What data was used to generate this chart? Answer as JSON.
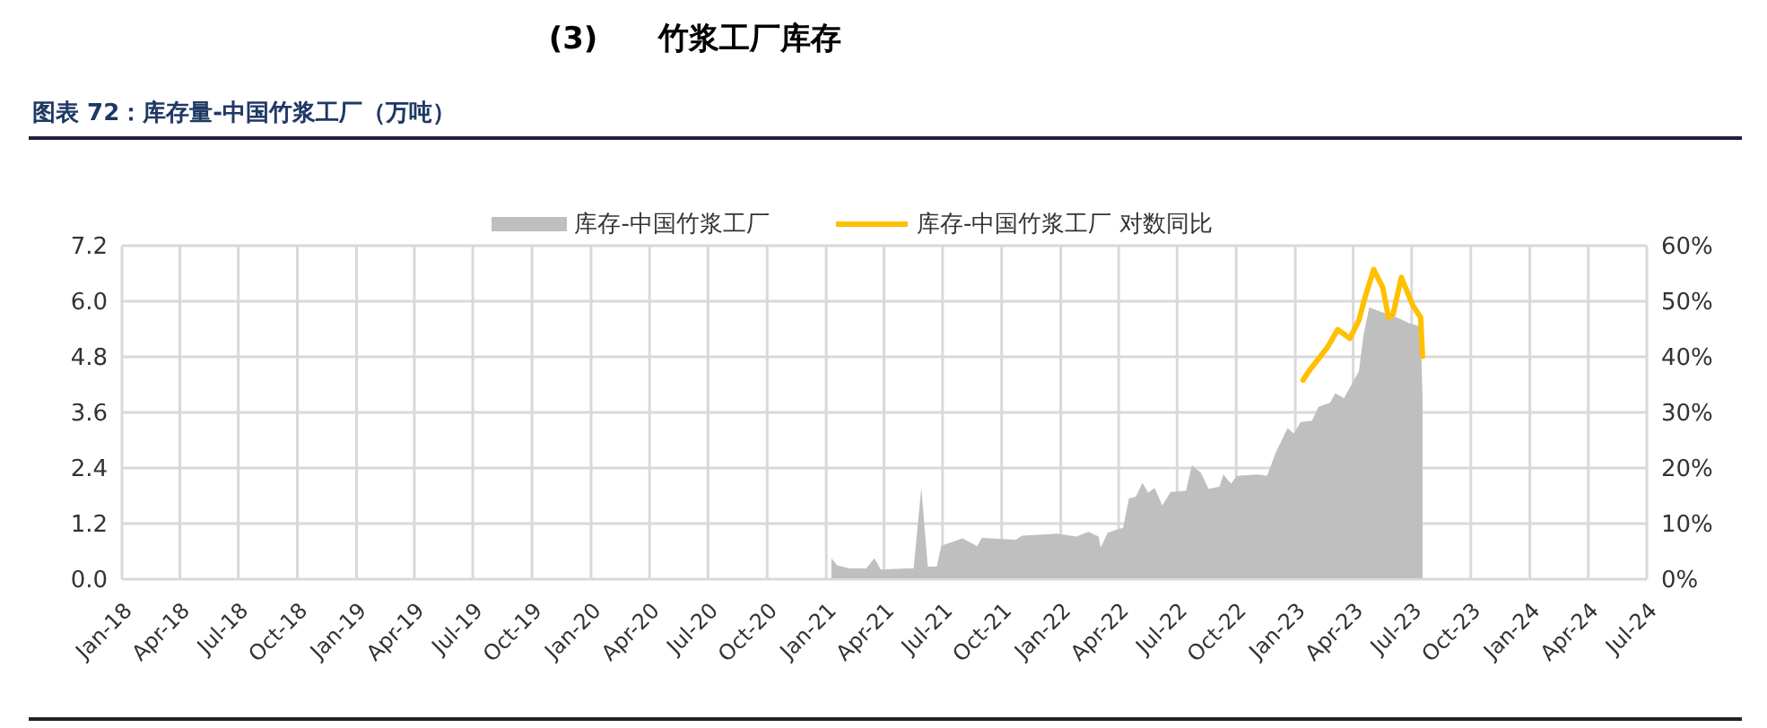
{
  "chart_data": {
    "type": "area",
    "title": "(3)　　竹浆工厂库存",
    "subtitle": "图表 72：库存量-中国竹浆工厂（万吨）",
    "series": [
      {
        "name": "库存-中国竹浆工厂",
        "color": "#bfbfbf",
        "x": [
          "2021-01-09",
          "2021-01-18",
          "2021-02-06",
          "2021-03-04",
          "2021-03-17",
          "2021-03-27",
          "2021-05-08",
          "2021-05-17",
          "2021-05-29",
          "2021-06-08",
          "2021-06-22",
          "2021-06-29",
          "2021-08-01",
          "2021-08-24",
          "2021-08-31",
          "2021-10-23",
          "2021-11-02",
          "2021-12-27",
          "2022-01-25",
          "2022-02-13",
          "2022-03-01",
          "2022-03-04",
          "2022-03-15",
          "2022-03-29",
          "2022-04-08",
          "2022-04-17",
          "2022-04-28",
          "2022-05-08",
          "2022-05-17",
          "2022-05-27",
          "2022-06-08",
          "2022-06-21",
          "2022-07-15",
          "2022-07-24",
          "2022-08-07",
          "2022-08-19",
          "2022-09-05",
          "2022-09-11",
          "2022-09-23",
          "2022-10-02",
          "2022-11-04",
          "2022-11-18",
          "2022-12-02",
          "2022-12-20",
          "2022-12-30",
          "2023-01-09",
          "2023-01-27",
          "2023-02-06",
          "2023-02-24",
          "2023-03-04",
          "2023-03-18",
          "2023-04-01",
          "2023-04-10",
          "2023-04-17",
          "2023-04-26",
          "2023-05-12",
          "2023-05-26",
          "2023-06-15",
          "2023-06-28",
          "2023-07-08",
          "2023-07-15",
          "2023-07-18"
        ],
        "values": [
          0.45,
          0.3,
          0.23,
          0.23,
          0.45,
          0.21,
          0.23,
          0.23,
          1.97,
          0.27,
          0.27,
          0.72,
          0.88,
          0.71,
          0.89,
          0.85,
          0.94,
          0.98,
          0.92,
          1.02,
          0.92,
          0.68,
          1.0,
          1.07,
          1.11,
          1.74,
          1.78,
          2.08,
          1.87,
          1.97,
          1.59,
          1.88,
          1.91,
          2.46,
          2.3,
          1.95,
          2.0,
          2.26,
          2.06,
          2.23,
          2.26,
          2.23,
          2.75,
          3.26,
          3.14,
          3.39,
          3.42,
          3.72,
          3.81,
          4.01,
          3.91,
          4.27,
          4.49,
          5.26,
          5.87,
          5.78,
          5.72,
          5.61,
          5.52,
          5.48,
          5.45,
          3.91
        ]
      },
      {
        "name": "库存-中国竹浆工厂 对数同比",
        "type": "line",
        "axis": "y2",
        "color": "#ffc000",
        "x": [
          "2023-01-13",
          "2023-01-22",
          "2023-02-20",
          "2023-03-08",
          "2023-03-27",
          "2023-04-10",
          "2023-04-20",
          "2023-05-03",
          "2023-05-17",
          "2023-05-26",
          "2023-06-02",
          "2023-06-15",
          "2023-07-03",
          "2023-07-15",
          "2023-07-18"
        ],
        "values": [
          35.8,
          37.4,
          41.7,
          44.9,
          43.3,
          46.6,
          50.9,
          55.7,
          52.5,
          47.1,
          47.6,
          54.3,
          49.2,
          47.1,
          40.1
        ]
      }
    ],
    "xlim": [
      "2018-01",
      "2024-07"
    ],
    "xticks": [
      {
        "value": "2018-01",
        "label": "Jan-18"
      },
      {
        "value": "2018-04",
        "label": "Apr-18"
      },
      {
        "value": "2018-07",
        "label": "Jul-18"
      },
      {
        "value": "2018-10",
        "label": "Oct-18"
      },
      {
        "value": "2019-01",
        "label": "Jan-19"
      },
      {
        "value": "2019-04",
        "label": "Apr-19"
      },
      {
        "value": "2019-07",
        "label": "Jul-19"
      },
      {
        "value": "2019-10",
        "label": "Oct-19"
      },
      {
        "value": "2020-01",
        "label": "Jan-20"
      },
      {
        "value": "2020-04",
        "label": "Apr-20"
      },
      {
        "value": "2020-07",
        "label": "Jul-20"
      },
      {
        "value": "2020-10",
        "label": "Oct-20"
      },
      {
        "value": "2021-01",
        "label": "Jan-21"
      },
      {
        "value": "2021-04",
        "label": "Apr-21"
      },
      {
        "value": "2021-07",
        "label": "Jul-21"
      },
      {
        "value": "2021-10",
        "label": "Oct-21"
      },
      {
        "value": "2022-01",
        "label": "Jan-22"
      },
      {
        "value": "2022-04",
        "label": "Apr-22"
      },
      {
        "value": "2022-07",
        "label": "Jul-22"
      },
      {
        "value": "2022-10",
        "label": "Oct-22"
      },
      {
        "value": "2023-01",
        "label": "Jan-23"
      },
      {
        "value": "2023-04",
        "label": "Apr-23"
      },
      {
        "value": "2023-07",
        "label": "Jul-23"
      },
      {
        "value": "2023-10",
        "label": "Oct-23"
      },
      {
        "value": "2024-01",
        "label": "Jan-24"
      },
      {
        "value": "2024-04",
        "label": "Apr-24"
      },
      {
        "value": "2024-07",
        "label": "Jul-24"
      }
    ],
    "ylim": [
      0,
      7.2
    ],
    "yticks": [
      {
        "value": 0,
        "label": "0.0"
      },
      1.2,
      2.4,
      3.6,
      4.8,
      {
        "value": 6,
        "label": "6.0"
      },
      7.2
    ],
    "y2lim": [
      0,
      60
    ],
    "y2ticks": [
      {
        "value": 0,
        "label": "0%"
      },
      {
        "value": 10,
        "label": "10%"
      },
      {
        "value": 20,
        "label": "20%"
      },
      {
        "value": 30,
        "label": "30%"
      },
      {
        "value": 40,
        "label": "40%"
      },
      {
        "value": 50,
        "label": "50%"
      },
      {
        "value": 60,
        "label": "60%"
      }
    ],
    "grid": true,
    "legend": "top",
    "marker": "none"
  }
}
